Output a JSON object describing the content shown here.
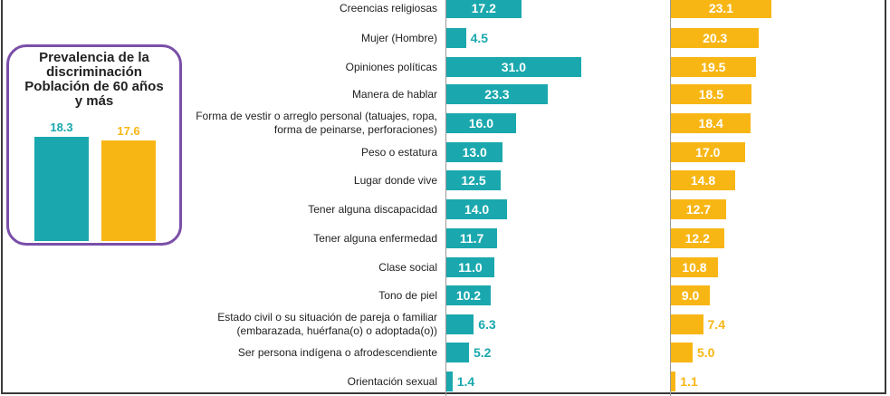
{
  "prevalence": {
    "title_lines": [
      "Prevalencia de la",
      "discriminación",
      "Población de 60 años",
      "y más"
    ],
    "values": [
      18.3,
      17.6
    ],
    "colors": [
      "#1aa8ae",
      "#f8b615"
    ]
  },
  "chart_data": {
    "type": "bar",
    "orientation": "horizontal",
    "categories": [
      [
        "Creencias religiosas"
      ],
      [
        "Mujer (Hombre)"
      ],
      [
        "Opiniones políticas"
      ],
      [
        "Manera de hablar"
      ],
      [
        "Forma de vestir o arreglo personal (tatuajes, ropa,",
        "forma de peinarse, perforaciones)"
      ],
      [
        "Peso o estatura"
      ],
      [
        "Lugar donde vive"
      ],
      [
        "Tener alguna discapacidad"
      ],
      [
        "Tener alguna enfermedad"
      ],
      [
        "Clase social"
      ],
      [
        "Tono de piel"
      ],
      [
        "Estado civil o su situación de pareja o familiar",
        "(embarazada, huérfana(o) o adoptada(o))"
      ],
      [
        "Ser persona indígena o afrodescendiente"
      ],
      [
        "Orientación sexual"
      ]
    ],
    "series": [
      {
        "color": "#1aa8ae",
        "values": [
          17.2,
          4.5,
          31.0,
          23.3,
          16.0,
          13.0,
          12.5,
          14.0,
          11.7,
          11.0,
          10.2,
          6.3,
          5.2,
          1.4
        ]
      },
      {
        "color": "#f8b615",
        "values": [
          23.1,
          20.3,
          19.5,
          18.5,
          18.4,
          17.0,
          14.8,
          12.7,
          12.2,
          10.8,
          9.0,
          7.4,
          5.0,
          1.1
        ]
      }
    ],
    "value_format": "one decimal"
  }
}
